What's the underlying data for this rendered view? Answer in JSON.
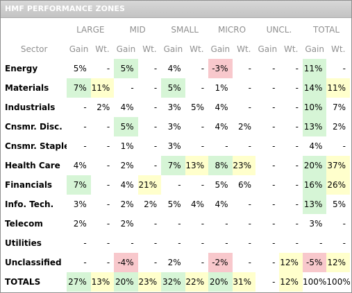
{
  "title": "HMF PERFORMANCE ZONES",
  "groups": [
    "LARGE",
    "MID",
    "SMALL",
    "MICRO",
    "UNCL.",
    "TOTAL"
  ],
  "sector_header": "Sector",
  "sub_headers": [
    "Gain",
    "Wt.",
    "Gain",
    "Wt.",
    "Gain",
    "Wt.",
    "Gain",
    "Wt.",
    "Gain",
    "Wt.",
    "Gain",
    "Wt."
  ],
  "highlight_colors": {
    "green": "#d6f5d6",
    "red": "#f8c8cc",
    "yellow": "#ffffcc"
  },
  "rows": [
    {
      "label": "Energy",
      "cells": [
        {
          "v": "5%"
        },
        {
          "v": "-"
        },
        {
          "v": "5%",
          "hl": "g"
        },
        {
          "v": "-"
        },
        {
          "v": "4%"
        },
        {
          "v": "-"
        },
        {
          "v": "-3%",
          "hl": "r"
        },
        {
          "v": "-"
        },
        {
          "v": "-"
        },
        {
          "v": "-"
        },
        {
          "v": "11%",
          "hl": "g"
        },
        {
          "v": "-"
        }
      ]
    },
    {
      "label": "Materials",
      "cells": [
        {
          "v": "7%",
          "hl": "g"
        },
        {
          "v": "11%",
          "hl": "y"
        },
        {
          "v": "-"
        },
        {
          "v": "-"
        },
        {
          "v": "5%",
          "hl": "g"
        },
        {
          "v": "-"
        },
        {
          "v": "1%"
        },
        {
          "v": "-"
        },
        {
          "v": "-"
        },
        {
          "v": "-"
        },
        {
          "v": "14%",
          "hl": "g"
        },
        {
          "v": "11%",
          "hl": "y"
        }
      ]
    },
    {
      "label": "Industrials",
      "cells": [
        {
          "v": "-"
        },
        {
          "v": "2%"
        },
        {
          "v": "4%"
        },
        {
          "v": "-"
        },
        {
          "v": "3%"
        },
        {
          "v": "5%"
        },
        {
          "v": "4%"
        },
        {
          "v": "-"
        },
        {
          "v": "-"
        },
        {
          "v": "-"
        },
        {
          "v": "10%",
          "hl": "g"
        },
        {
          "v": "7%"
        }
      ]
    },
    {
      "label": "Cnsmr. Disc.",
      "cells": [
        {
          "v": "-"
        },
        {
          "v": "-"
        },
        {
          "v": "5%",
          "hl": "g"
        },
        {
          "v": "-"
        },
        {
          "v": "3%"
        },
        {
          "v": "-"
        },
        {
          "v": "4%"
        },
        {
          "v": "2%"
        },
        {
          "v": "-"
        },
        {
          "v": "-"
        },
        {
          "v": "13%",
          "hl": "g"
        },
        {
          "v": "2%"
        }
      ]
    },
    {
      "label": "Cnsmr. Staples",
      "cells": [
        {
          "v": "-"
        },
        {
          "v": "-"
        },
        {
          "v": "1%"
        },
        {
          "v": "-"
        },
        {
          "v": "3%"
        },
        {
          "v": "-"
        },
        {
          "v": "-"
        },
        {
          "v": "-"
        },
        {
          "v": "-"
        },
        {
          "v": "-"
        },
        {
          "v": "4%"
        },
        {
          "v": "-"
        }
      ]
    },
    {
      "label": "Health Care",
      "cells": [
        {
          "v": "4%"
        },
        {
          "v": "-"
        },
        {
          "v": "2%"
        },
        {
          "v": "-"
        },
        {
          "v": "7%",
          "hl": "g"
        },
        {
          "v": "13%",
          "hl": "y"
        },
        {
          "v": "8%",
          "hl": "g"
        },
        {
          "v": "23%",
          "hl": "y"
        },
        {
          "v": "-"
        },
        {
          "v": "-"
        },
        {
          "v": "20%",
          "hl": "g"
        },
        {
          "v": "37%",
          "hl": "y"
        }
      ]
    },
    {
      "label": "Financials",
      "cells": [
        {
          "v": "7%",
          "hl": "g"
        },
        {
          "v": "-"
        },
        {
          "v": "4%"
        },
        {
          "v": "21%",
          "hl": "y"
        },
        {
          "v": "-"
        },
        {
          "v": "-"
        },
        {
          "v": "5%"
        },
        {
          "v": "6%"
        },
        {
          "v": "-"
        },
        {
          "v": "-"
        },
        {
          "v": "16%",
          "hl": "g"
        },
        {
          "v": "26%",
          "hl": "y"
        }
      ]
    },
    {
      "label": "Info. Tech.",
      "cells": [
        {
          "v": "3%"
        },
        {
          "v": "-"
        },
        {
          "v": "2%"
        },
        {
          "v": "2%"
        },
        {
          "v": "5%"
        },
        {
          "v": "4%"
        },
        {
          "v": "4%"
        },
        {
          "v": "-"
        },
        {
          "v": "-"
        },
        {
          "v": "-"
        },
        {
          "v": "13%",
          "hl": "g"
        },
        {
          "v": "5%"
        }
      ]
    },
    {
      "label": "Telecom",
      "cells": [
        {
          "v": "2%"
        },
        {
          "v": "-"
        },
        {
          "v": "2%"
        },
        {
          "v": "-"
        },
        {
          "v": "-"
        },
        {
          "v": "-"
        },
        {
          "v": "-"
        },
        {
          "v": "-"
        },
        {
          "v": "-"
        },
        {
          "v": "-"
        },
        {
          "v": "3%"
        },
        {
          "v": "-"
        }
      ]
    },
    {
      "label": "Utilities",
      "cells": [
        {
          "v": "-"
        },
        {
          "v": "-"
        },
        {
          "v": "-"
        },
        {
          "v": "-"
        },
        {
          "v": "-"
        },
        {
          "v": "-"
        },
        {
          "v": "-"
        },
        {
          "v": "-"
        },
        {
          "v": "-"
        },
        {
          "v": "-"
        },
        {
          "v": "-"
        },
        {
          "v": "-"
        }
      ]
    },
    {
      "label": "Unclassified",
      "cells": [
        {
          "v": "-"
        },
        {
          "v": "-"
        },
        {
          "v": "-4%",
          "hl": "r"
        },
        {
          "v": "-"
        },
        {
          "v": "2%"
        },
        {
          "v": "-"
        },
        {
          "v": "-2%",
          "hl": "r"
        },
        {
          "v": "-"
        },
        {
          "v": "-"
        },
        {
          "v": "12%",
          "hl": "y"
        },
        {
          "v": "-5%",
          "hl": "r"
        },
        {
          "v": "12%",
          "hl": "y"
        }
      ]
    },
    {
      "label": "TOTALS",
      "cells": [
        {
          "v": "27%",
          "hl": "g"
        },
        {
          "v": "13%",
          "hl": "y"
        },
        {
          "v": "20%",
          "hl": "g"
        },
        {
          "v": "23%",
          "hl": "y"
        },
        {
          "v": "32%",
          "hl": "g"
        },
        {
          "v": "22%",
          "hl": "y"
        },
        {
          "v": "20%",
          "hl": "g"
        },
        {
          "v": "31%",
          "hl": "y"
        },
        {
          "v": "-"
        },
        {
          "v": "12%",
          "hl": "y"
        },
        {
          "v": "100%"
        },
        {
          "v": "100%"
        }
      ]
    }
  ]
}
